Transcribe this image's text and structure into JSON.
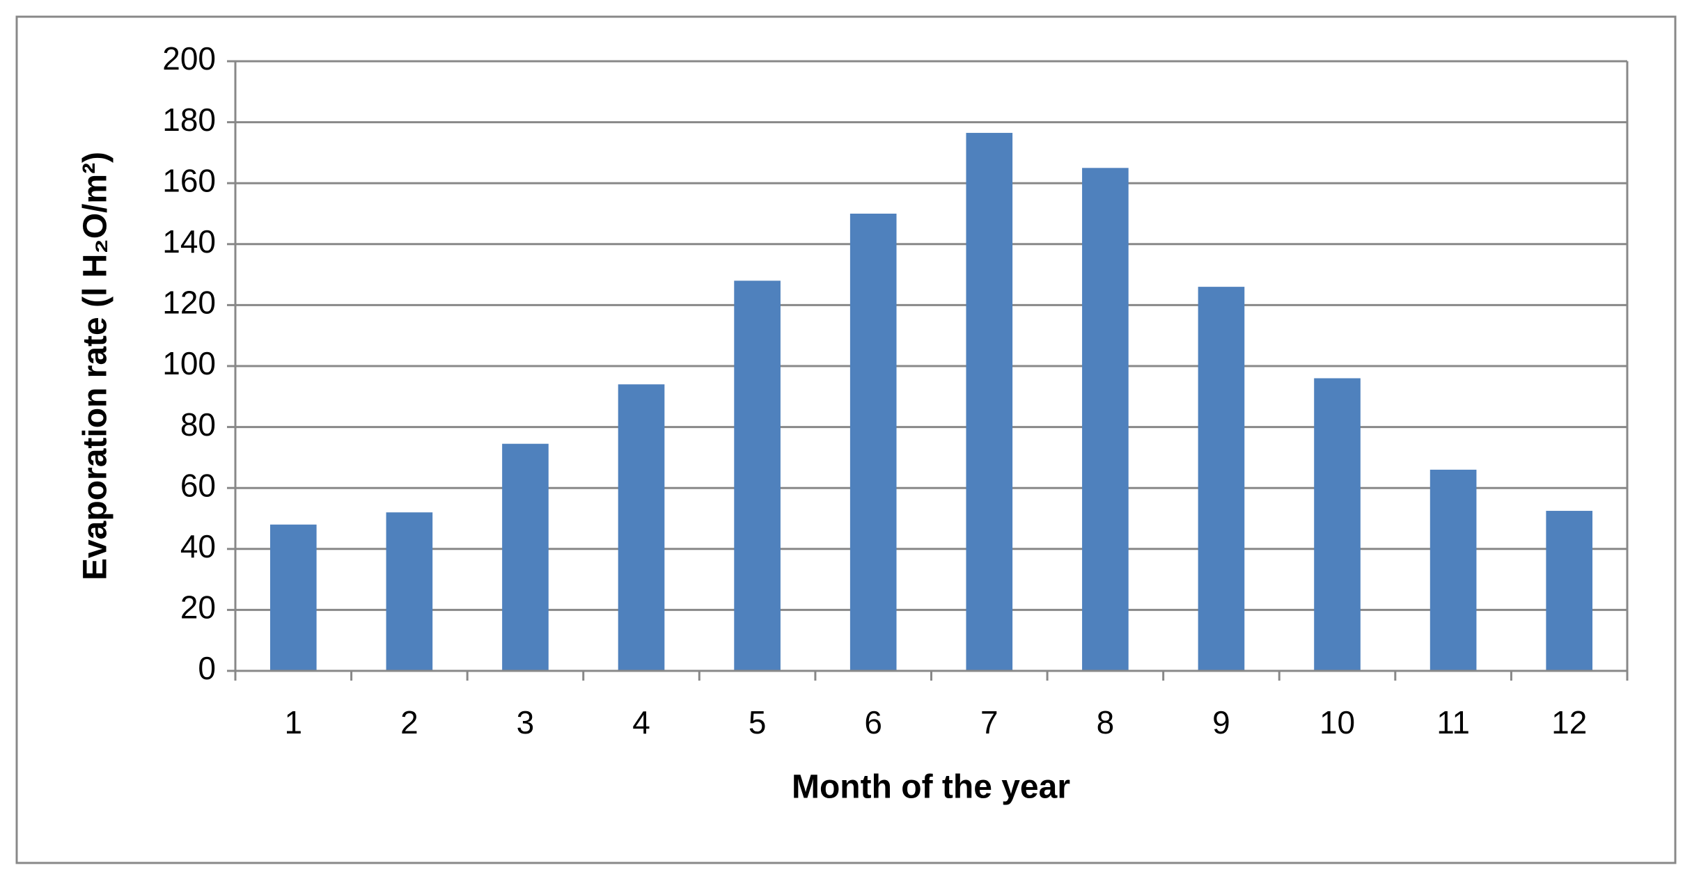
{
  "chart_data": {
    "type": "bar",
    "x_label": "Month of the year",
    "y_label": "Evaporation rate (l H₂O/m²)",
    "categories": [
      "1",
      "2",
      "3",
      "4",
      "5",
      "6",
      "7",
      "8",
      "9",
      "10",
      "11",
      "12"
    ],
    "values": [
      48,
      52,
      74.5,
      94,
      128,
      150,
      176.5,
      165,
      126,
      96,
      66,
      52.5
    ],
    "color": "#4f81bd",
    "ylim": [
      0,
      200
    ],
    "yticks": [
      0,
      20,
      40,
      60,
      80,
      100,
      120,
      140,
      160,
      180,
      200
    ],
    "grid": true
  }
}
